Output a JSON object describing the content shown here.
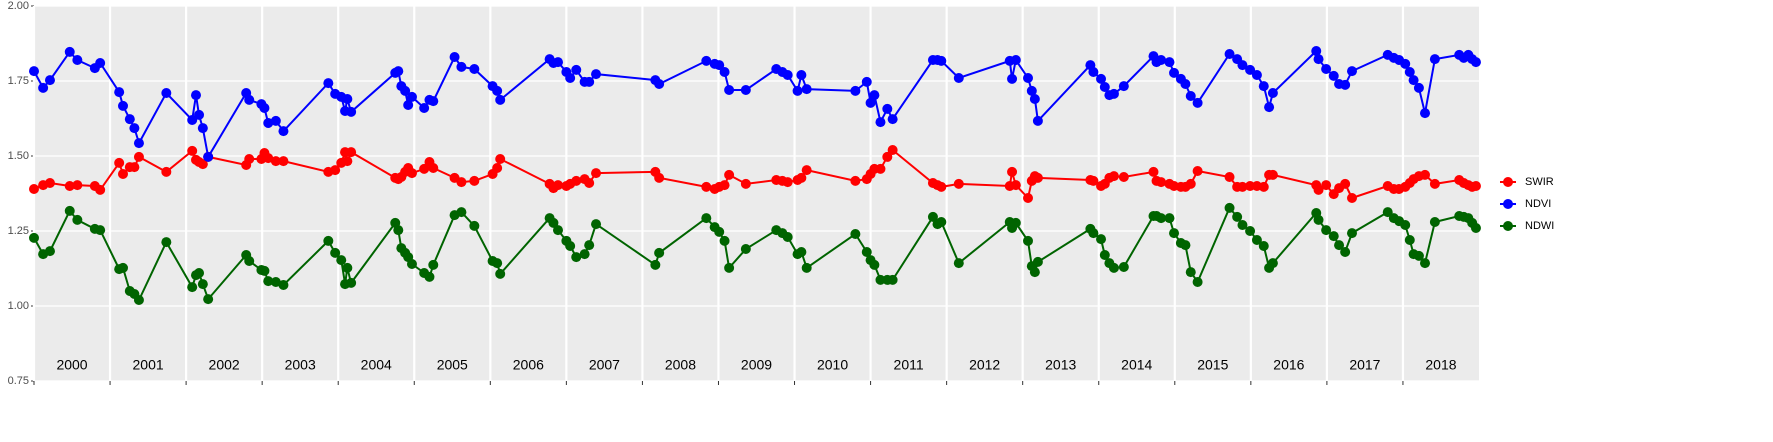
{
  "chart_data": {
    "type": "line",
    "legend": "right",
    "grid": true,
    "xlim": [
      2000,
      2019
    ],
    "ylim": [
      0.75,
      2.0
    ],
    "yticks": [
      {
        "value": 0.75,
        "label": "0.75"
      },
      {
        "value": 1.0,
        "label": "1.00"
      },
      {
        "value": 1.25,
        "label": "1.25"
      },
      {
        "value": 1.5,
        "label": "1.50"
      },
      {
        "value": 1.75,
        "label": "1.75"
      },
      {
        "value": 2.0,
        "label": "2.00"
      }
    ],
    "xticks": [
      2000,
      2001,
      2002,
      2003,
      2004,
      2005,
      2006,
      2007,
      2008,
      2009,
      2010,
      2011,
      2012,
      2013,
      2014,
      2015,
      2016,
      2017,
      2018
    ],
    "x": [
      2000.0,
      2000.12,
      2000.21,
      2000.47,
      2000.57,
      2000.8,
      2000.87,
      2001.12,
      2001.17,
      2001.26,
      2001.32,
      2001.38,
      2001.74,
      2002.08,
      2002.13,
      2002.17,
      2002.22,
      2002.29,
      2002.79,
      2002.83,
      2002.99,
      2003.03,
      2003.08,
      2003.18,
      2003.28,
      2003.87,
      2003.96,
      2004.04,
      2004.09,
      2004.12,
      2004.17,
      2004.75,
      2004.79,
      2004.83,
      2004.88,
      2004.92,
      2004.97,
      2005.13,
      2005.2,
      2005.25,
      2005.53,
      2005.62,
      2005.79,
      2006.03,
      2006.09,
      2006.13,
      2006.78,
      2006.83,
      2006.89,
      2007.0,
      2007.05,
      2007.13,
      2007.24,
      2007.3,
      2007.39,
      2008.17,
      2008.22,
      2008.84,
      2008.95,
      2009.01,
      2009.08,
      2009.14,
      2009.36,
      2009.76,
      2009.84,
      2009.91,
      2010.04,
      2010.09,
      2010.16,
      2010.8,
      2010.95,
      2011.0,
      2011.05,
      2011.13,
      2011.22,
      2011.29,
      2011.82,
      2011.88,
      2011.93,
      2012.16,
      2012.83,
      2012.86,
      2012.91,
      2013.07,
      2013.12,
      2013.16,
      2013.2,
      2013.89,
      2013.93,
      2014.03,
      2014.08,
      2014.14,
      2014.2,
      2014.33,
      2014.72,
      2014.76,
      2014.82,
      2014.93,
      2014.99,
      2015.08,
      2015.14,
      2015.21,
      2015.3,
      2015.72,
      2015.82,
      2015.89,
      2015.99,
      2016.08,
      2016.17,
      2016.24,
      2016.29,
      2016.86,
      2016.89,
      2016.99,
      2017.09,
      2017.16,
      2017.24,
      2017.33,
      2017.8,
      2017.88,
      2017.95,
      2018.03,
      2018.09,
      2018.14,
      2018.21,
      2018.29,
      2018.42,
      2018.74,
      2018.8,
      2018.86,
      2018.91,
      2018.96
    ],
    "series": [
      {
        "name": "SWIR",
        "color": "#ff0000",
        "values": [
          1.39,
          1.403,
          1.41,
          1.4,
          1.403,
          1.4,
          1.387,
          1.477,
          1.44,
          1.463,
          1.463,
          1.497,
          1.447,
          1.517,
          1.487,
          1.48,
          1.473,
          1.497,
          1.47,
          1.49,
          1.49,
          1.51,
          1.493,
          1.483,
          1.483,
          1.447,
          1.453,
          1.477,
          1.513,
          1.483,
          1.513,
          1.427,
          1.423,
          1.43,
          1.447,
          1.46,
          1.443,
          1.457,
          1.48,
          1.46,
          1.427,
          1.413,
          1.417,
          1.44,
          1.46,
          1.49,
          1.407,
          1.393,
          1.403,
          1.4,
          1.407,
          1.417,
          1.423,
          1.41,
          1.443,
          1.447,
          1.427,
          1.397,
          1.39,
          1.397,
          1.403,
          1.437,
          1.407,
          1.42,
          1.417,
          1.413,
          1.42,
          1.427,
          1.453,
          1.417,
          1.423,
          1.44,
          1.457,
          1.457,
          1.497,
          1.52,
          1.41,
          1.403,
          1.397,
          1.407,
          1.4,
          1.447,
          1.403,
          1.36,
          1.417,
          1.433,
          1.427,
          1.42,
          1.417,
          1.4,
          1.407,
          1.427,
          1.433,
          1.43,
          1.447,
          1.417,
          1.413,
          1.407,
          1.4,
          1.397,
          1.397,
          1.407,
          1.45,
          1.43,
          1.397,
          1.397,
          1.4,
          1.4,
          1.397,
          1.437,
          1.437,
          1.403,
          1.387,
          1.403,
          1.373,
          1.393,
          1.407,
          1.36,
          1.4,
          1.39,
          1.39,
          1.397,
          1.41,
          1.423,
          1.433,
          1.437,
          1.407,
          1.42,
          1.41,
          1.403,
          1.397,
          1.4
        ]
      },
      {
        "name": "NDVI",
        "color": "#0000ff",
        "values": [
          1.783,
          1.727,
          1.753,
          1.847,
          1.82,
          1.793,
          1.81,
          1.713,
          1.667,
          1.623,
          1.593,
          1.543,
          1.71,
          1.62,
          1.703,
          1.637,
          1.593,
          1.497,
          1.71,
          1.687,
          1.673,
          1.66,
          1.61,
          1.617,
          1.583,
          1.743,
          1.707,
          1.697,
          1.65,
          1.69,
          1.647,
          1.777,
          1.783,
          1.733,
          1.717,
          1.67,
          1.697,
          1.66,
          1.687,
          1.683,
          1.83,
          1.797,
          1.79,
          1.733,
          1.717,
          1.687,
          1.823,
          1.81,
          1.813,
          1.78,
          1.76,
          1.787,
          1.747,
          1.747,
          1.773,
          1.753,
          1.74,
          1.817,
          1.807,
          1.803,
          1.78,
          1.72,
          1.72,
          1.79,
          1.78,
          1.77,
          1.717,
          1.77,
          1.723,
          1.717,
          1.747,
          1.677,
          1.703,
          1.613,
          1.657,
          1.623,
          1.82,
          1.82,
          1.817,
          1.76,
          1.817,
          1.757,
          1.82,
          1.76,
          1.717,
          1.69,
          1.617,
          1.803,
          1.78,
          1.757,
          1.73,
          1.703,
          1.707,
          1.733,
          1.833,
          1.813,
          1.82,
          1.813,
          1.777,
          1.757,
          1.74,
          1.7,
          1.677,
          1.84,
          1.823,
          1.803,
          1.787,
          1.77,
          1.733,
          1.663,
          1.71,
          1.85,
          1.823,
          1.79,
          1.767,
          1.74,
          1.737,
          1.783,
          1.837,
          1.827,
          1.82,
          1.807,
          1.78,
          1.753,
          1.727,
          1.643,
          1.823,
          1.837,
          1.827,
          1.837,
          1.823,
          1.813
        ]
      },
      {
        "name": "NDWI",
        "color": "#006400",
        "values": [
          1.227,
          1.173,
          1.183,
          1.317,
          1.287,
          1.257,
          1.253,
          1.123,
          1.127,
          1.05,
          1.04,
          1.02,
          1.213,
          1.063,
          1.103,
          1.11,
          1.073,
          1.023,
          1.17,
          1.15,
          1.12,
          1.117,
          1.083,
          1.08,
          1.07,
          1.217,
          1.177,
          1.153,
          1.073,
          1.127,
          1.077,
          1.277,
          1.253,
          1.193,
          1.177,
          1.163,
          1.14,
          1.11,
          1.097,
          1.137,
          1.303,
          1.313,
          1.267,
          1.15,
          1.143,
          1.107,
          1.293,
          1.277,
          1.253,
          1.217,
          1.2,
          1.163,
          1.173,
          1.203,
          1.273,
          1.137,
          1.177,
          1.293,
          1.263,
          1.247,
          1.217,
          1.127,
          1.19,
          1.253,
          1.243,
          1.23,
          1.173,
          1.18,
          1.127,
          1.24,
          1.18,
          1.153,
          1.137,
          1.087,
          1.087,
          1.087,
          1.297,
          1.273,
          1.28,
          1.143,
          1.28,
          1.26,
          1.277,
          1.217,
          1.133,
          1.113,
          1.147,
          1.257,
          1.243,
          1.223,
          1.17,
          1.143,
          1.127,
          1.13,
          1.3,
          1.3,
          1.293,
          1.293,
          1.243,
          1.21,
          1.203,
          1.113,
          1.08,
          1.327,
          1.297,
          1.27,
          1.25,
          1.22,
          1.2,
          1.127,
          1.143,
          1.31,
          1.287,
          1.253,
          1.233,
          1.203,
          1.18,
          1.243,
          1.313,
          1.293,
          1.283,
          1.27,
          1.22,
          1.173,
          1.167,
          1.143,
          1.28,
          1.3,
          1.297,
          1.293,
          1.277,
          1.26
        ]
      }
    ]
  }
}
